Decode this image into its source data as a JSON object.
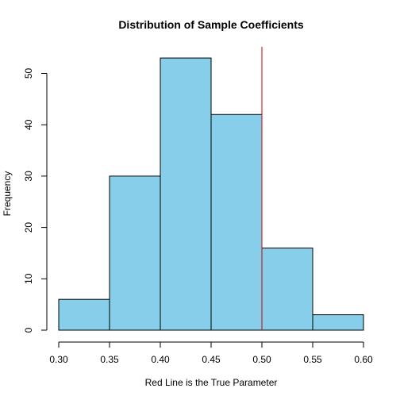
{
  "chart_data": {
    "type": "histogram",
    "title": "Distribution of Sample Coefficients",
    "xlabel": "Red Line is the True Parameter",
    "ylabel": "Frequency",
    "bins": [
      {
        "start": 0.3,
        "end": 0.35,
        "count": 6
      },
      {
        "start": 0.35,
        "end": 0.4,
        "count": 30
      },
      {
        "start": 0.4,
        "end": 0.45,
        "count": 53
      },
      {
        "start": 0.45,
        "end": 0.5,
        "count": 42
      },
      {
        "start": 0.5,
        "end": 0.55,
        "count": 16
      },
      {
        "start": 0.55,
        "end": 0.6,
        "count": 3
      }
    ],
    "xlim": [
      0.3,
      0.6
    ],
    "ylim": [
      0,
      55
    ],
    "xticks": [
      "0.30",
      "0.35",
      "0.40",
      "0.45",
      "0.50",
      "0.55",
      "0.60"
    ],
    "yticks": [
      "0",
      "10",
      "20",
      "30",
      "40",
      "50"
    ],
    "reference_line": {
      "x": 0.5,
      "color": "#cc0000"
    },
    "bar_color": "#87ceeb",
    "grid": false
  }
}
